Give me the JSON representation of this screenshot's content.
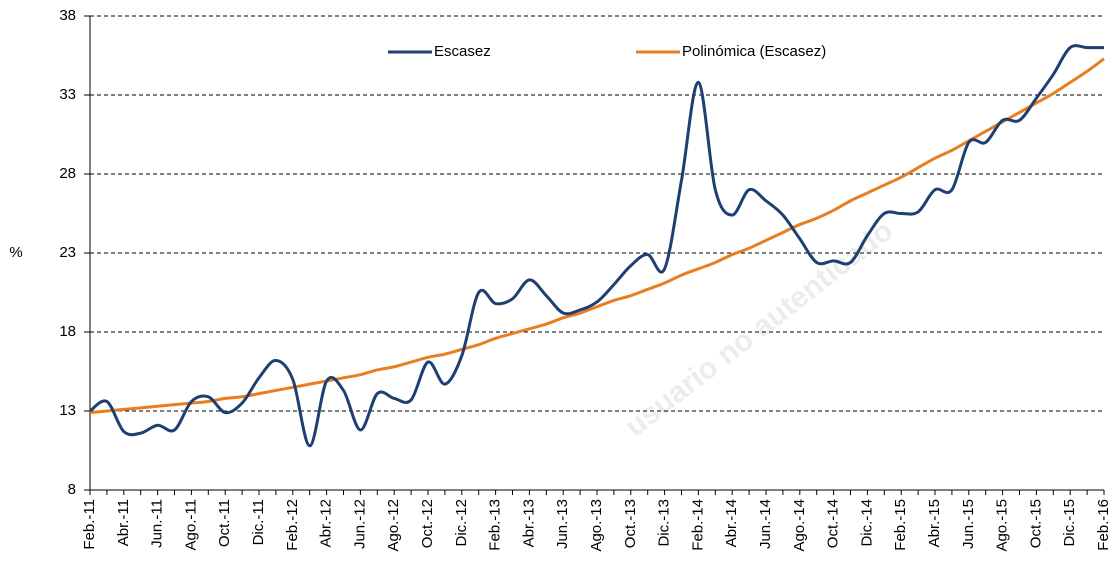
{
  "chart_data": {
    "type": "line",
    "y_label": "%",
    "watermark": "usuario no autenticado",
    "categories": [
      "Feb.-11",
      null,
      "Abr.-11",
      null,
      "Jun.-11",
      null,
      "Ago.-11",
      null,
      "Oct.-11",
      null,
      "Dic.-11",
      null,
      "Feb.-12",
      null,
      "Abr.-12",
      null,
      "Jun.-12",
      null,
      "Ago.-12",
      null,
      "Oct.-12",
      null,
      "Dic.-12",
      null,
      "Feb.-13",
      null,
      "Abr.-13",
      null,
      "Jun.-13",
      null,
      "Ago.-13",
      null,
      "Oct.-13",
      null,
      "Dic.-13",
      null,
      "Feb.-14",
      null,
      "Abr.-14",
      null,
      "Jun.-14",
      null,
      "Ago.-14",
      null,
      "Oct.-14",
      null,
      "Dic.-14",
      null,
      "Feb.-15",
      null,
      "Abr.-15",
      null,
      "Jun.-15",
      null,
      "Ago.-15",
      null,
      "Oct.-15",
      null,
      "Dic.-15",
      null,
      "Feb.-16"
    ],
    "series": [
      {
        "name": "Escasez",
        "color": "#1f3f73",
        "width": 3,
        "values": [
          13.0,
          13.6,
          11.7,
          11.6,
          12.1,
          11.8,
          13.6,
          13.9,
          12.9,
          13.5,
          15.1,
          16.2,
          15.0,
          10.8,
          14.9,
          14.3,
          11.8,
          14.1,
          13.8,
          13.7,
          16.1,
          14.7,
          16.5,
          20.5,
          19.8,
          20.1,
          21.3,
          20.3,
          19.2,
          19.4,
          19.9,
          21.0,
          22.2,
          22.9,
          22.0,
          27.6,
          33.8,
          27.0,
          25.4,
          27.0,
          26.3,
          25.4,
          23.9,
          22.4,
          22.5,
          22.4,
          24.1,
          25.5,
          25.5,
          25.6,
          27.0,
          27.0,
          30.0,
          30.0,
          31.4,
          31.4,
          32.8,
          34.3,
          36.0,
          36.0,
          36.0
        ]
      },
      {
        "name": "Polinómica (Escasez)",
        "color": "#e87e1f",
        "width": 3,
        "values": [
          12.9,
          13.0,
          13.1,
          13.2,
          13.3,
          13.4,
          13.5,
          13.6,
          13.8,
          13.9,
          14.1,
          14.3,
          14.5,
          14.7,
          14.9,
          15.1,
          15.3,
          15.6,
          15.8,
          16.1,
          16.4,
          16.6,
          16.9,
          17.2,
          17.6,
          17.9,
          18.2,
          18.5,
          18.9,
          19.2,
          19.6,
          20.0,
          20.3,
          20.7,
          21.1,
          21.6,
          22.0,
          22.4,
          22.9,
          23.3,
          23.8,
          24.3,
          24.8,
          25.2,
          25.7,
          26.3,
          26.8,
          27.3,
          27.8,
          28.4,
          29.0,
          29.5,
          30.1,
          30.7,
          31.3,
          31.9,
          32.5,
          33.1,
          33.8,
          34.5,
          35.3
        ]
      }
    ],
    "ylim": [
      8,
      38
    ],
    "yticks": [
      8,
      13,
      18,
      23,
      28,
      33,
      38
    ],
    "grid": true
  }
}
